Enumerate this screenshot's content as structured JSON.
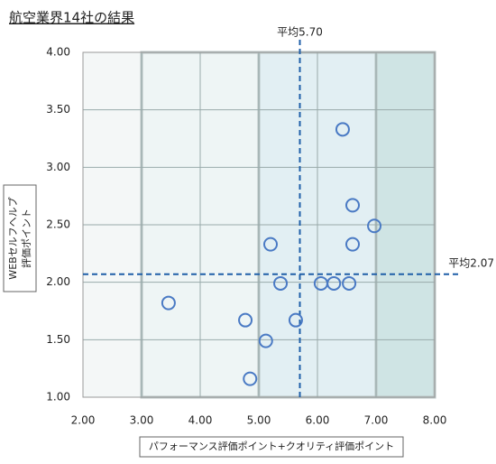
{
  "chart_data": {
    "type": "scatter",
    "title": "航空業界14社の結果",
    "xlabel": "パフォーマンス評価ポイント+クオリティ評価ポイント",
    "ylabel": [
      "WEBセルフヘルプ",
      "評価ポイント"
    ],
    "x": [
      3.46,
      4.77,
      4.85,
      5.12,
      5.2,
      5.37,
      5.63,
      6.06,
      6.28,
      6.54,
      6.43,
      6.6,
      6.6,
      6.97
    ],
    "values": [
      1.82,
      1.67,
      1.16,
      1.49,
      2.33,
      1.99,
      1.67,
      1.99,
      1.99,
      1.99,
      3.33,
      2.67,
      2.33,
      2.49
    ],
    "color": "#4a7ac4",
    "xlim": [
      2,
      8
    ],
    "ylim": [
      1,
      4
    ],
    "xticks": [
      {
        "value": 2,
        "label": "2.00"
      },
      {
        "value": 3,
        "label": "3.00"
      },
      {
        "value": 4,
        "label": "4.00"
      },
      {
        "value": 5,
        "label": "5.00"
      },
      {
        "value": 6,
        "label": "6.00"
      },
      {
        "value": 7,
        "label": "7.00"
      },
      {
        "value": 8,
        "label": "8.00"
      }
    ],
    "yticks": [
      {
        "value": 1,
        "label": "1.00"
      },
      {
        "value": 1.5,
        "label": "1.50"
      },
      {
        "value": 2,
        "label": "2.00"
      },
      {
        "value": 2.5,
        "label": "2.50"
      },
      {
        "value": 3,
        "label": "3.00"
      },
      {
        "value": 3.5,
        "label": "3.50"
      },
      {
        "value": 4,
        "label": "4.00"
      }
    ],
    "x_average": {
      "value": 5.7,
      "label": "平均5.70"
    },
    "y_average": {
      "value": 2.07,
      "label": "平均2.07"
    },
    "grid": true
  }
}
